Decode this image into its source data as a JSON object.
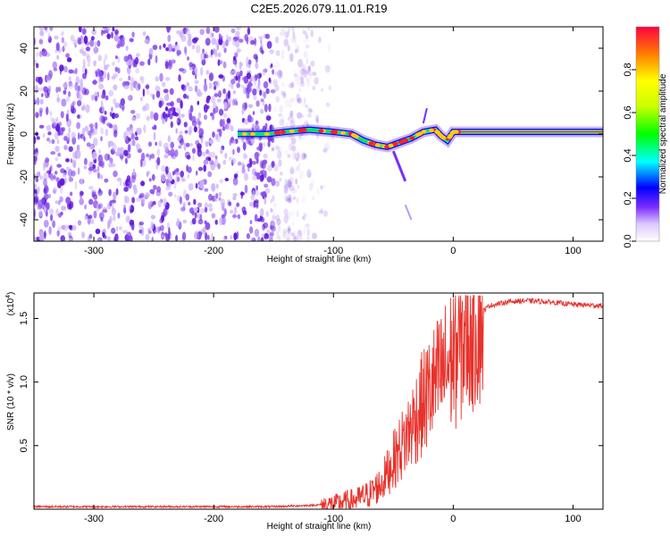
{
  "figure": {
    "title": "C2E5.2026.079.11.01.R19"
  },
  "chart_data": [
    {
      "type": "heatmap",
      "panel": "top",
      "title": "",
      "xlabel": "Height of straight line (km)",
      "ylabel": "Frequency (Hz)",
      "xlim": [
        -350,
        125
      ],
      "ylim": [
        -50,
        50
      ],
      "xticks": [
        -300,
        -200,
        -100,
        0,
        100
      ],
      "yticks": [
        -40,
        -20,
        0,
        20,
        40
      ],
      "colorbar": {
        "label": "Normalized spectral amplitude",
        "range": [
          0.0,
          1.0
        ],
        "ticks": [
          0.0,
          0.2,
          0.4,
          0.6,
          0.8
        ]
      },
      "features": {
        "noise_region_x": [
          -350,
          -120
        ],
        "carrier_center_path": [
          {
            "x": -180,
            "y": 0
          },
          {
            "x": -155,
            "y": 0
          },
          {
            "x": -140,
            "y": 1
          },
          {
            "x": -120,
            "y": 2
          },
          {
            "x": -100,
            "y": 1
          },
          {
            "x": -85,
            "y": 0
          },
          {
            "x": -75,
            "y": -3
          },
          {
            "x": -65,
            "y": -5
          },
          {
            "x": -55,
            "y": -6
          },
          {
            "x": -45,
            "y": -4
          },
          {
            "x": -35,
            "y": -2
          },
          {
            "x": -25,
            "y": 1
          },
          {
            "x": -15,
            "y": 2
          },
          {
            "x": -10,
            "y": -1
          },
          {
            "x": -5,
            "y": -3
          },
          {
            "x": 0,
            "y": 1
          },
          {
            "x": 5,
            "y": 1
          },
          {
            "x": 125,
            "y": 1
          }
        ]
      }
    },
    {
      "type": "line",
      "panel": "bottom",
      "title": "",
      "xlabel": "Height of straight line (km)",
      "ylabel": "SNR (10 * v/v)",
      "scale_note": "(x10",
      "scale_exponent": "4",
      "xlim": [
        -350,
        125
      ],
      "ylim": [
        0,
        1.7
      ],
      "xticks": [
        -300,
        -200,
        -100,
        0,
        100
      ],
      "yticks": [
        0.5,
        1.0,
        1.5
      ],
      "ytick_labels": [
        "0.5",
        "1.0",
        "1.5"
      ],
      "series": [
        {
          "name": "SNR",
          "color": "#e8322c",
          "envelope": [
            {
              "x": -350,
              "y": 0.02
            },
            {
              "x": -250,
              "y": 0.02
            },
            {
              "x": -150,
              "y": 0.02
            },
            {
              "x": -120,
              "y": 0.03
            },
            {
              "x": -100,
              "y": 0.04
            },
            {
              "x": -90,
              "y": 0.06
            },
            {
              "x": -80,
              "y": 0.08
            },
            {
              "x": -70,
              "y": 0.12
            },
            {
              "x": -60,
              "y": 0.2
            },
            {
              "x": -50,
              "y": 0.38
            },
            {
              "x": -40,
              "y": 0.55
            },
            {
              "x": -30,
              "y": 0.75
            },
            {
              "x": -20,
              "y": 0.92
            },
            {
              "x": -10,
              "y": 1.05
            },
            {
              "x": 0,
              "y": 1.2
            },
            {
              "x": 10,
              "y": 1.38
            },
            {
              "x": 20,
              "y": 1.52
            },
            {
              "x": 30,
              "y": 1.6
            },
            {
              "x": 45,
              "y": 1.63
            },
            {
              "x": 60,
              "y": 1.64
            },
            {
              "x": 80,
              "y": 1.63
            },
            {
              "x": 100,
              "y": 1.61
            },
            {
              "x": 125,
              "y": 1.6
            }
          ]
        }
      ]
    }
  ],
  "colors": {
    "noise": "#6a1fe0",
    "line": "#e8322c",
    "axes": "#000000"
  }
}
